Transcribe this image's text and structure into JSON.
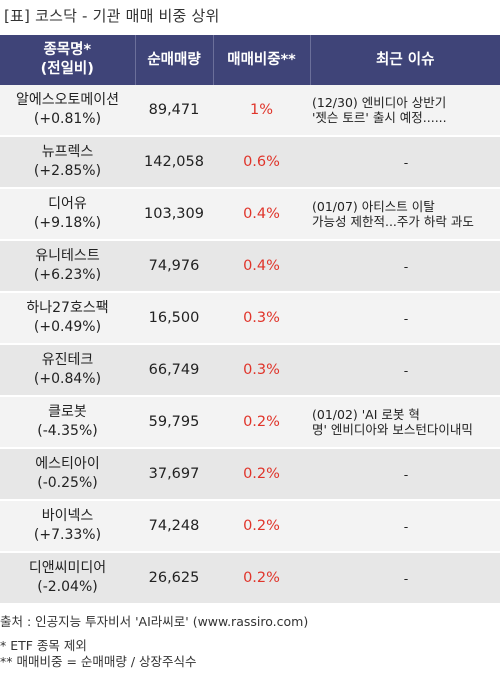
{
  "title": "[표] 코스닥 - 기관 매매 비중 상위",
  "headers": {
    "name": "종목명*",
    "name_sub": "(전일비)",
    "volume": "순매매량",
    "ratio": "매매비중**",
    "issue": "최근 이슈"
  },
  "rows": [
    {
      "name": "알에스오토메이션",
      "change": "(+0.81%)",
      "volume": "89,471",
      "ratio": "1%",
      "issue1": "(12/30) 엔비디아 상반기",
      "issue2": "'젯슨 토르' 출시 예정......"
    },
    {
      "name": "뉴프렉스",
      "change": "(+2.85%)",
      "volume": "142,058",
      "ratio": "0.6%",
      "issue1": "-",
      "issue2": ""
    },
    {
      "name": "디어유",
      "change": "(+9.18%)",
      "volume": "103,309",
      "ratio": "0.4%",
      "issue1": "(01/07) 아티스트 이탈",
      "issue2": "가능성 제한적...주가 하락 과도"
    },
    {
      "name": "유니테스트",
      "change": "(+6.23%)",
      "volume": "74,976",
      "ratio": "0.4%",
      "issue1": "-",
      "issue2": ""
    },
    {
      "name": "하나27호스팩",
      "change": "(+0.49%)",
      "volume": "16,500",
      "ratio": "0.3%",
      "issue1": "-",
      "issue2": ""
    },
    {
      "name": "유진테크",
      "change": "(+0.84%)",
      "volume": "66,749",
      "ratio": "0.3%",
      "issue1": "-",
      "issue2": ""
    },
    {
      "name": "클로봇",
      "change": "(-4.35%)",
      "volume": "59,795",
      "ratio": "0.2%",
      "issue1": "(01/02) 'AI 로봇 혁",
      "issue2": "명' 엔비디아와 보스턴다이내믹"
    },
    {
      "name": "에스티아이",
      "change": "(-0.25%)",
      "volume": "37,697",
      "ratio": "0.2%",
      "issue1": "-",
      "issue2": ""
    },
    {
      "name": "바이넥스",
      "change": "(+7.33%)",
      "volume": "74,248",
      "ratio": "0.2%",
      "issue1": "-",
      "issue2": ""
    },
    {
      "name": "디앤씨미디어",
      "change": "(-2.04%)",
      "volume": "26,625",
      "ratio": "0.2%",
      "issue1": "-",
      "issue2": ""
    }
  ],
  "footer": {
    "source": "출처 : 인공지능 투자비서 'AI라씨로' (www.rassiro.com)",
    "note1": "* ETF 종목 제외",
    "note2": "** 매매비중 = 순매매량 / 상장주식수"
  },
  "colors": {
    "header_bg": "#3f4478",
    "ratio_text": "#e0352b",
    "row_light": "#f3f3f3",
    "row_dark": "#e7e7e7"
  }
}
